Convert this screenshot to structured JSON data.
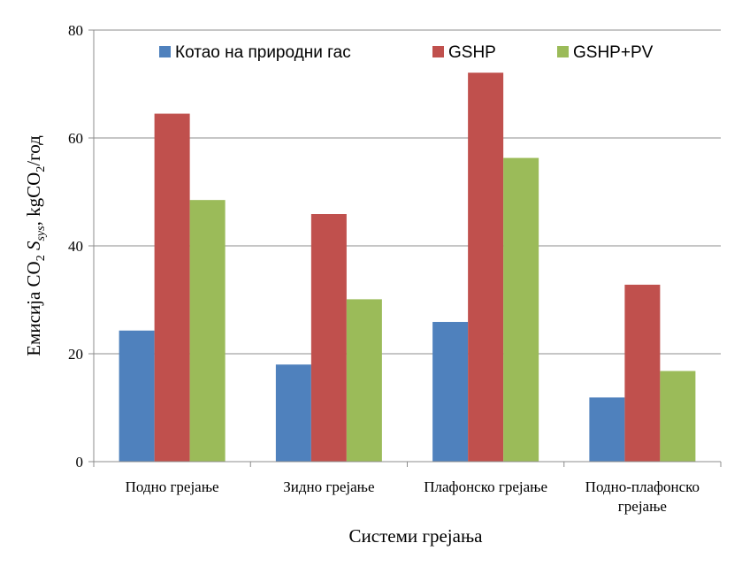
{
  "chart_data": {
    "type": "bar",
    "title": "",
    "xlabel": "Системи грејања",
    "ylabel": {
      "prefix": "Емисија CO",
      "sub1": "2",
      "mid": " S",
      "sub2": "sys",
      "mid2": ", kgCO",
      "sub3": "2",
      "suffix": "/год"
    },
    "ylim": [
      0,
      80
    ],
    "yticks": [
      "0",
      "20",
      "40",
      "60",
      "80"
    ],
    "grid": true,
    "legend_position": "top",
    "categories": [
      [
        "Подно грејање"
      ],
      [
        "Зидно грејање"
      ],
      [
        "Плафонско грејање"
      ],
      [
        "Подно-плафонско",
        "грејање"
      ]
    ],
    "series": [
      {
        "name": "Котао на природни гас",
        "color": "#4F81BD",
        "values": [
          24.3,
          18.0,
          25.9,
          11.9
        ]
      },
      {
        "name": "GSHP",
        "color": "#C0504D",
        "values": [
          64.5,
          45.9,
          72.1,
          32.8
        ]
      },
      {
        "name": "GSHP+PV",
        "color": "#9BBB59",
        "values": [
          48.5,
          30.1,
          56.3,
          16.8
        ]
      }
    ]
  }
}
